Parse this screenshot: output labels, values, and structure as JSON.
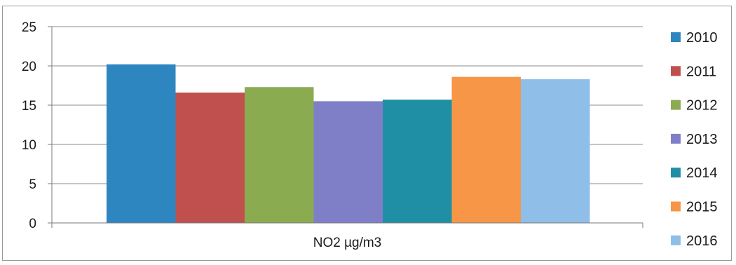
{
  "chart_data": {
    "type": "bar",
    "categories": [
      "NO2 µg/m3"
    ],
    "series": [
      {
        "name": "2010",
        "values": [
          20.2
        ],
        "color": "#2e86c1"
      },
      {
        "name": "2011",
        "values": [
          16.6
        ],
        "color": "#c0504d"
      },
      {
        "name": "2012",
        "values": [
          17.3
        ],
        "color": "#8aab4f"
      },
      {
        "name": "2013",
        "values": [
          15.5
        ],
        "color": "#7f7fc8"
      },
      {
        "name": "2014",
        "values": [
          15.7
        ],
        "color": "#1f8fa6"
      },
      {
        "name": "2015",
        "values": [
          18.6
        ],
        "color": "#f79646"
      },
      {
        "name": "2016",
        "values": [
          18.3
        ],
        "color": "#8fbfe8"
      }
    ],
    "ylim": [
      0,
      25
    ],
    "yticks": [
      "0",
      "5",
      "10",
      "15",
      "20",
      "25"
    ],
    "grid": true,
    "legend_position": "right"
  }
}
